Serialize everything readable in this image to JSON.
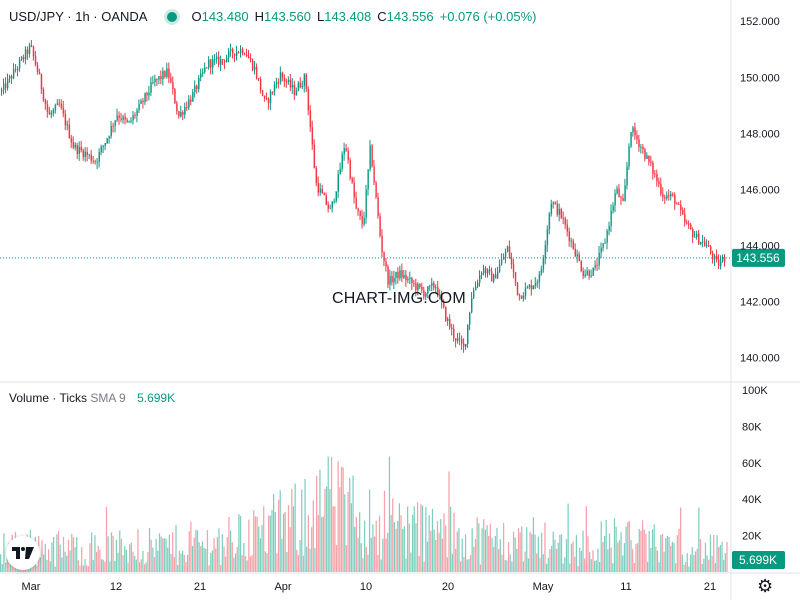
{
  "header": {
    "symbol": "USD/JPY · 1h · OANDA",
    "o_label": "O",
    "o_value": "143.480",
    "h_label": "H",
    "h_value": "143.560",
    "l_label": "L",
    "l_value": "143.408",
    "c_label": "C",
    "c_value": "143.556",
    "change": "+0.076 (+0.05%)"
  },
  "volume_legend": {
    "label": "Volume · Ticks",
    "sma_label": "SMA 9",
    "value": "5.699K"
  },
  "watermark": "CHART-IMG.COM",
  "colors": {
    "up": "#089981",
    "down": "#f23645",
    "up_vol": "#7fcfc1",
    "down_vol": "#f7a1a8"
  },
  "chart_data": [
    {
      "type": "candlestick",
      "title": "USD/JPY · 1h · OANDA",
      "x_ticks": [
        "Mar",
        "12",
        "21",
        "Apr",
        "10",
        "20",
        "May",
        "11",
        "21"
      ],
      "y_ticks": [
        "140.000",
        "142.000",
        "144.000",
        "146.000",
        "148.000",
        "150.000",
        "152.000"
      ],
      "ylim": [
        139.2,
        152.4
      ],
      "last_price": 143.556,
      "last_price_label": "143.556",
      "grid": false,
      "series": [
        {
          "name": "USD/JPY",
          "path": [
            [
              0,
              149.5
            ],
            [
              0.02,
              150.3
            ],
            [
              0.04,
              151.1
            ],
            [
              0.05,
              150.2
            ],
            [
              0.065,
              148.6
            ],
            [
              0.08,
              149.0
            ],
            [
              0.1,
              147.5
            ],
            [
              0.115,
              147.3
            ],
            [
              0.13,
              147.0
            ],
            [
              0.145,
              147.8
            ],
            [
              0.16,
              148.7
            ],
            [
              0.175,
              148.3
            ],
            [
              0.19,
              148.9
            ],
            [
              0.21,
              149.8
            ],
            [
              0.23,
              150.2
            ],
            [
              0.245,
              148.6
            ],
            [
              0.265,
              149.4
            ],
            [
              0.285,
              150.5
            ],
            [
              0.305,
              150.6
            ],
            [
              0.32,
              150.9
            ],
            [
              0.335,
              151.0
            ],
            [
              0.35,
              150.3
            ],
            [
              0.365,
              149.0
            ],
            [
              0.385,
              150.1
            ],
            [
              0.405,
              149.5
            ],
            [
              0.42,
              150.0
            ],
            [
              0.435,
              146.2
            ],
            [
              0.445,
              145.7
            ],
            [
              0.455,
              145.2
            ],
            [
              0.465,
              146.3
            ],
            [
              0.475,
              147.7
            ],
            [
              0.49,
              145.3
            ],
            [
              0.5,
              144.7
            ],
            [
              0.51,
              147.5
            ],
            [
              0.525,
              144.0
            ],
            [
              0.535,
              142.7
            ],
            [
              0.55,
              143.0
            ],
            [
              0.57,
              142.6
            ],
            [
              0.585,
              142.3
            ],
            [
              0.6,
              142.6
            ],
            [
              0.615,
              141.4
            ],
            [
              0.625,
              140.8
            ],
            [
              0.64,
              140.3
            ],
            [
              0.65,
              142.2
            ],
            [
              0.665,
              143.2
            ],
            [
              0.68,
              142.8
            ],
            [
              0.7,
              143.9
            ],
            [
              0.715,
              142.2
            ],
            [
              0.73,
              142.5
            ],
            [
              0.745,
              142.9
            ],
            [
              0.76,
              145.6
            ],
            [
              0.775,
              145.0
            ],
            [
              0.79,
              144.0
            ],
            [
              0.805,
              143.0
            ],
            [
              0.82,
              143.1
            ],
            [
              0.835,
              144.2
            ],
            [
              0.85,
              146.0
            ],
            [
              0.86,
              145.4
            ],
            [
              0.87,
              148.2
            ],
            [
              0.885,
              147.5
            ],
            [
              0.9,
              146.7
            ],
            [
              0.915,
              145.8
            ],
            [
              0.93,
              145.7
            ],
            [
              0.945,
              144.8
            ],
            [
              0.96,
              144.3
            ],
            [
              0.975,
              144.0
            ],
            [
              0.99,
              143.3
            ],
            [
              1.0,
              143.556
            ]
          ]
        }
      ]
    },
    {
      "type": "bar",
      "title": "Volume · Ticks",
      "y_ticks": [
        "20K",
        "40K",
        "60K",
        "80K",
        "100K"
      ],
      "ylim": [
        0,
        100
      ],
      "last_value_label": "5.699K",
      "series": [
        {
          "name": "Volume · Ticks",
          "profile": [
            [
              0,
              16
            ],
            [
              0.1,
              14
            ],
            [
              0.2,
              15
            ],
            [
              0.3,
              18
            ],
            [
              0.4,
              30
            ],
            [
              0.45,
              42
            ],
            [
              0.5,
              32
            ],
            [
              0.55,
              28
            ],
            [
              0.6,
              24
            ],
            [
              0.7,
              18
            ],
            [
              0.8,
              16
            ],
            [
              0.85,
              20
            ],
            [
              0.9,
              17
            ],
            [
              1.0,
              12
            ]
          ]
        }
      ]
    }
  ]
}
